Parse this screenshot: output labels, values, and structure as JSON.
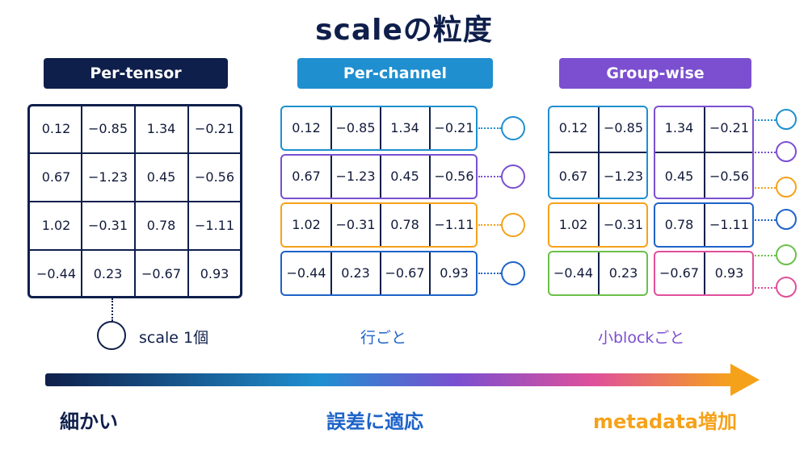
{
  "title": "scaleの粒度",
  "panels": {
    "per_tensor": {
      "header": "Per-tensor",
      "caption": "scale 1個"
    },
    "per_channel": {
      "header": "Per-channel",
      "caption": "行ごと"
    },
    "group_wise": {
      "header": "Group-wise",
      "caption": "小blockごと"
    }
  },
  "matrix": [
    [
      "0.12",
      "−0.85",
      "1.34",
      "−0.21"
    ],
    [
      "0.67",
      "−1.23",
      "0.45",
      "−0.56"
    ],
    [
      "1.02",
      "−0.31",
      "0.78",
      "−1.11"
    ],
    [
      "−0.44",
      "0.23",
      "−0.67",
      "0.93"
    ]
  ],
  "colors": {
    "navy": "#0f1f4b",
    "blue": "#1f8fd0",
    "purple": "#7b4fd0",
    "orange": "#f5a21a",
    "royal": "#1e63c8",
    "green": "#6cc04a",
    "pink": "#e0509a"
  },
  "axis": {
    "left": "細かい",
    "center": "誤差に適応",
    "right": "metadata増加"
  }
}
